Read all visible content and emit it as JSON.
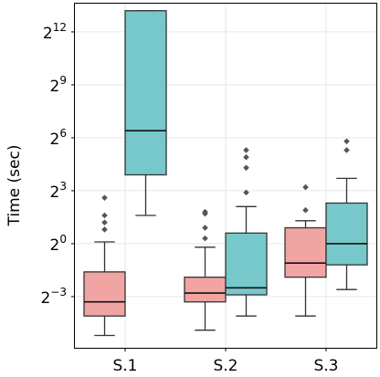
{
  "chart_data": {
    "type": "box",
    "ylabel": "Time (sec)",
    "y_scale": "log2",
    "ylim_exp": [
      -5.9,
      13.6
    ],
    "grid": true,
    "categories": [
      "S.1",
      "S.2",
      "S.3"
    ],
    "y_ticks": [
      {
        "base": "2",
        "exp": "12",
        "value": 12
      },
      {
        "base": "2",
        "exp": "9",
        "value": 9
      },
      {
        "base": "2",
        "exp": "6",
        "value": 6
      },
      {
        "base": "2",
        "exp": "3",
        "value": 3
      },
      {
        "base": "2",
        "exp": "0",
        "value": 0
      },
      {
        "base": "2",
        "exp": "−3",
        "value": -3
      }
    ],
    "series": [
      {
        "color": "#f0a5a3",
        "boxes": [
          {
            "category": "S.1",
            "whisker_low": -5.2,
            "q1": -4.1,
            "median": -3.3,
            "q3": -1.6,
            "whisker_high": 0.1,
            "outliers": [
              0.8,
              1.2,
              1.6,
              2.6
            ]
          },
          {
            "category": "S.2",
            "whisker_low": -4.9,
            "q1": -3.3,
            "median": -2.8,
            "q3": -1.9,
            "whisker_high": -0.2,
            "outliers": [
              0.3,
              0.9,
              1.7,
              1.8
            ]
          },
          {
            "category": "S.3",
            "whisker_low": -4.1,
            "q1": -1.9,
            "median": -1.1,
            "q3": 0.9,
            "whisker_high": 1.3,
            "outliers": [
              1.9,
              3.2
            ]
          }
        ]
      },
      {
        "color": "#76c8ca",
        "boxes": [
          {
            "category": "S.1",
            "whisker_low": 1.6,
            "q1": 3.9,
            "median": 6.4,
            "q3": 13.2,
            "whisker_high": 13.2,
            "outliers": []
          },
          {
            "category": "S.2",
            "whisker_low": -4.1,
            "q1": -2.9,
            "median": -2.5,
            "q3": 0.6,
            "whisker_high": 2.1,
            "outliers": [
              2.9,
              4.3,
              4.9,
              5.3
            ]
          },
          {
            "category": "S.3",
            "whisker_low": -2.6,
            "q1": -1.2,
            "median": 0.0,
            "q3": 2.3,
            "whisker_high": 3.7,
            "outliers": [
              5.3,
              5.8
            ]
          }
        ]
      }
    ]
  }
}
